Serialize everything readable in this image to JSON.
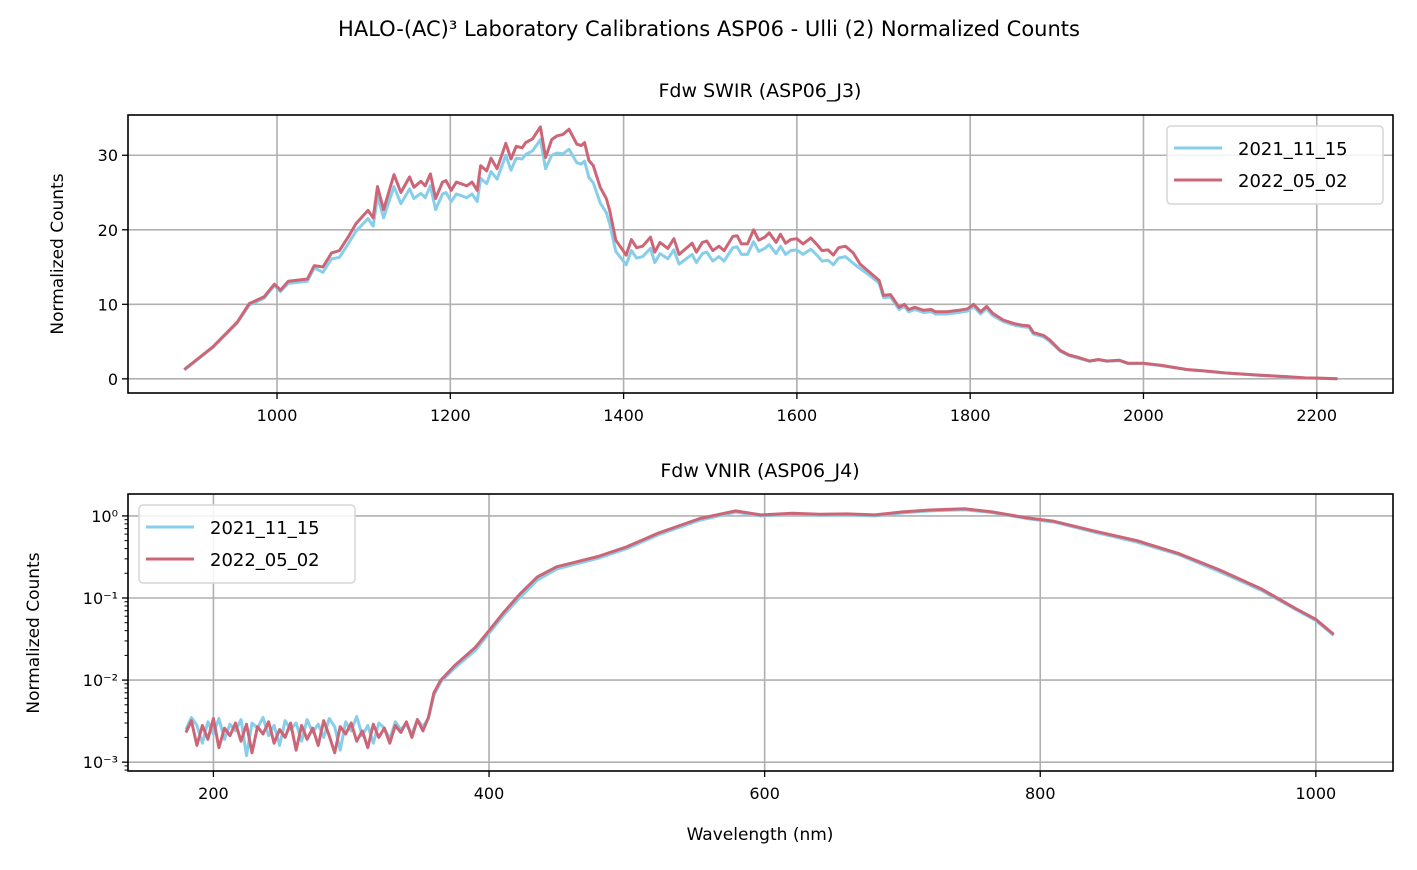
{
  "figure_title": "HALO-(AC)³ Laboratory Calibrations ASP06 - Ulli (2) Normalized Counts",
  "colors": {
    "series_2021": "#87CEEB",
    "series_2022": "#CC6677",
    "grid": "#b0b0b0"
  },
  "chart_data": [
    {
      "type": "line",
      "title": "Fdw SWIR (ASP06_J3)",
      "xlabel": "",
      "ylabel": "Normalized Counts",
      "yscale": "linear",
      "xlim": [
        828,
        2288
      ],
      "ylim": [
        -1.9,
        35.4
      ],
      "xticks": [
        1000,
        1200,
        1400,
        1600,
        1800,
        2000,
        2200
      ],
      "xtick_labels": [
        "1000",
        "1200",
        "1400",
        "1600",
        "1800",
        "2000",
        "2200"
      ],
      "yticks": [
        0,
        10,
        20,
        30
      ],
      "ytick_labels": [
        "0",
        "10",
        "20",
        "30"
      ],
      "grid": true,
      "legend": "top-right",
      "x": [
        893,
        926,
        954,
        968,
        985,
        997,
        1004,
        1013,
        1035,
        1043,
        1053,
        1063,
        1072,
        1082,
        1091,
        1105,
        1111,
        1116,
        1123,
        1135,
        1143,
        1153,
        1158,
        1166,
        1171,
        1177,
        1183,
        1191,
        1195,
        1201,
        1207,
        1219,
        1225,
        1231,
        1235,
        1242,
        1247,
        1254,
        1264,
        1270,
        1276,
        1283,
        1287,
        1295,
        1304,
        1310,
        1317,
        1323,
        1330,
        1337,
        1346,
        1351,
        1355,
        1360,
        1365,
        1373,
        1380,
        1384,
        1391,
        1403,
        1409,
        1415,
        1422,
        1431,
        1436,
        1442,
        1451,
        1458,
        1464,
        1479,
        1484,
        1491,
        1496,
        1503,
        1510,
        1516,
        1526,
        1531,
        1536,
        1543,
        1550,
        1556,
        1563,
        1568,
        1576,
        1581,
        1587,
        1593,
        1600,
        1607,
        1616,
        1624,
        1629,
        1636,
        1642,
        1648,
        1656,
        1665,
        1673,
        1685,
        1695,
        1700,
        1708,
        1718,
        1724,
        1729,
        1736,
        1746,
        1755,
        1760,
        1773,
        1787,
        1797,
        1804,
        1812,
        1819,
        1826,
        1838,
        1851,
        1860,
        1868,
        1873,
        1885,
        1892,
        1904,
        1914,
        1924,
        1938,
        1948,
        1958,
        1972,
        1982,
        2000,
        2021,
        2050,
        2070,
        2094,
        2133,
        2167,
        2186,
        2201,
        2224
      ],
      "series": [
        {
          "name": "2021_11_15",
          "color": "#87CEEB",
          "values": [
            1.2,
            4.2,
            7.5,
            9.9,
            10.8,
            12.5,
            11.7,
            12.8,
            13.1,
            14.9,
            14.3,
            16.1,
            16.3,
            18.1,
            19.8,
            21.5,
            20.5,
            24.5,
            21.6,
            25.8,
            23.5,
            25.5,
            24.2,
            24.9,
            24.3,
            25.9,
            22.7,
            24.8,
            25.0,
            23.8,
            24.8,
            24.3,
            24.8,
            23.8,
            26.9,
            26.2,
            27.8,
            26.8,
            30.0,
            28.0,
            29.6,
            29.5,
            30.1,
            30.6,
            32.1,
            28.2,
            30.0,
            30.3,
            30.2,
            30.8,
            29.0,
            28.8,
            29.2,
            27.0,
            26.3,
            23.6,
            22.3,
            20.8,
            17.1,
            15.3,
            17.2,
            16.2,
            16.4,
            17.5,
            15.6,
            16.8,
            16.1,
            17.3,
            15.4,
            16.7,
            15.6,
            16.8,
            17.0,
            15.8,
            16.4,
            15.8,
            17.6,
            17.7,
            16.7,
            16.7,
            18.4,
            17.1,
            17.5,
            18.0,
            16.8,
            17.8,
            16.7,
            17.2,
            17.3,
            16.7,
            17.4,
            16.5,
            15.8,
            15.9,
            15.3,
            16.2,
            16.4,
            15.5,
            14.8,
            13.8,
            12.8,
            10.9,
            11.0,
            9.3,
            9.7,
            9.0,
            9.3,
            8.9,
            9.0,
            8.7,
            8.7,
            8.9,
            9.1,
            9.7,
            8.7,
            9.4,
            8.5,
            7.7,
            7.2,
            7.0,
            6.9,
            6.0,
            5.6,
            5.0,
            3.7,
            3.1,
            2.8,
            2.35,
            2.55,
            2.35,
            2.45,
            2.05,
            2.05,
            1.75,
            1.22,
            1.05,
            0.78,
            0.49,
            0.26,
            0.13,
            0.1,
            0.0
          ]
        },
        {
          "name": "2022_05_02",
          "color": "#CC6677",
          "values": [
            1.25,
            4.3,
            7.6,
            10.1,
            11.0,
            12.7,
            11.9,
            13.1,
            13.4,
            15.2,
            15.0,
            16.9,
            17.2,
            19.0,
            20.8,
            22.6,
            21.6,
            25.8,
            22.7,
            27.4,
            25.0,
            27.1,
            25.7,
            26.5,
            25.9,
            27.5,
            24.2,
            26.4,
            26.6,
            25.3,
            26.4,
            25.9,
            26.4,
            25.3,
            28.6,
            27.9,
            29.6,
            28.2,
            31.6,
            29.5,
            31.2,
            31.0,
            31.7,
            32.2,
            33.8,
            29.7,
            32.1,
            32.6,
            32.8,
            33.5,
            31.5,
            31.3,
            31.7,
            29.3,
            28.6,
            25.7,
            24.2,
            22.6,
            18.6,
            16.6,
            18.7,
            17.6,
            17.8,
            19.0,
            17.0,
            18.3,
            17.5,
            18.8,
            16.7,
            18.2,
            17.0,
            18.3,
            18.5,
            17.2,
            17.8,
            17.2,
            19.1,
            19.2,
            18.1,
            18.1,
            20.0,
            18.6,
            19.0,
            19.6,
            18.3,
            19.4,
            18.2,
            18.7,
            18.8,
            18.1,
            18.9,
            17.9,
            17.2,
            17.3,
            16.6,
            17.6,
            17.8,
            16.9,
            15.4,
            14.2,
            13.2,
            11.2,
            11.3,
            9.6,
            10.0,
            9.3,
            9.6,
            9.2,
            9.3,
            9.0,
            9.0,
            9.2,
            9.4,
            10.0,
            9.0,
            9.7,
            8.8,
            7.9,
            7.4,
            7.2,
            7.1,
            6.2,
            5.8,
            5.2,
            3.8,
            3.2,
            2.9,
            2.4,
            2.6,
            2.4,
            2.5,
            2.1,
            2.1,
            1.8,
            1.25,
            1.07,
            0.8,
            0.5,
            0.27,
            0.13,
            0.1,
            0.0
          ]
        }
      ]
    },
    {
      "type": "line",
      "title": "Fdw VNIR (ASP06_J4)",
      "xlabel": "Wavelength (nm)",
      "ylabel": "Normalized Counts",
      "yscale": "log",
      "xlim": [
        138,
        1056
      ],
      "ylim": [
        0.00078,
        1.85
      ],
      "xticks": [
        200,
        400,
        600,
        800,
        1000
      ],
      "xtick_labels": [
        "200",
        "400",
        "600",
        "800",
        "1000"
      ],
      "yticks": [
        0.001,
        0.01,
        0.1,
        1
      ],
      "ytick_labels": [
        "10⁻³",
        "10⁻²",
        "10⁻¹",
        "10⁰"
      ],
      "grid": true,
      "legend": "top-left",
      "x": [
        180,
        184,
        188,
        192,
        196,
        200,
        204,
        208,
        212,
        216,
        220,
        224,
        228,
        232,
        236,
        240,
        244,
        248,
        252,
        256,
        260,
        264,
        268,
        272,
        276,
        280,
        284,
        288,
        292,
        296,
        300,
        304,
        308,
        312,
        316,
        320,
        324,
        328,
        332,
        336,
        340,
        344,
        348,
        352,
        356,
        360,
        365,
        375,
        390,
        400,
        410,
        422,
        435,
        449,
        465,
        479,
        500,
        523,
        553,
        579,
        597,
        620,
        640,
        660,
        680,
        700,
        720,
        745,
        765,
        790,
        810,
        840,
        870,
        900,
        930,
        960,
        985,
        1000,
        1013
      ],
      "series": [
        {
          "name": "2021_11_15",
          "color": "#87CEEB",
          "values": [
            0.0025,
            0.0035,
            0.0028,
            0.0017,
            0.0031,
            0.0022,
            0.0034,
            0.0019,
            0.0029,
            0.0024,
            0.0033,
            0.0012,
            0.003,
            0.0026,
            0.0035,
            0.0021,
            0.0028,
            0.0016,
            0.0032,
            0.0025,
            0.003,
            0.0018,
            0.0033,
            0.0023,
            0.0029,
            0.002,
            0.0034,
            0.0027,
            0.0014,
            0.0031,
            0.0024,
            0.0036,
            0.0021,
            0.0028,
            0.0017,
            0.003,
            0.0026,
            0.0019,
            0.0031,
            0.0025,
            0.0029,
            0.0022,
            0.0033,
            0.0027,
            0.0034,
            0.0065,
            0.0095,
            0.014,
            0.023,
            0.037,
            0.06,
            0.1,
            0.165,
            0.225,
            0.265,
            0.305,
            0.4,
            0.59,
            0.89,
            1.11,
            1.0,
            1.05,
            1.02,
            1.03,
            1.0,
            1.09,
            1.15,
            1.19,
            1.1,
            0.93,
            0.84,
            0.63,
            0.48,
            0.34,
            0.21,
            0.125,
            0.073,
            0.053,
            0.035
          ]
        },
        {
          "name": "2022_05_02",
          "color": "#CC6677",
          "values": [
            0.0023,
            0.0032,
            0.0016,
            0.0028,
            0.0019,
            0.0034,
            0.0015,
            0.0026,
            0.0021,
            0.003,
            0.0018,
            0.0029,
            0.0013,
            0.0027,
            0.0022,
            0.0031,
            0.0017,
            0.0025,
            0.002,
            0.003,
            0.0014,
            0.0028,
            0.0019,
            0.0026,
            0.0016,
            0.0032,
            0.0021,
            0.0013,
            0.0027,
            0.0022,
            0.003,
            0.0018,
            0.0024,
            0.0015,
            0.0029,
            0.002,
            0.0026,
            0.0017,
            0.0028,
            0.0023,
            0.0031,
            0.002,
            0.0033,
            0.0024,
            0.0035,
            0.007,
            0.01,
            0.015,
            0.025,
            0.04,
            0.065,
            0.11,
            0.18,
            0.24,
            0.28,
            0.32,
            0.42,
            0.62,
            0.93,
            1.15,
            1.03,
            1.08,
            1.05,
            1.06,
            1.03,
            1.12,
            1.18,
            1.22,
            1.12,
            0.95,
            0.86,
            0.65,
            0.5,
            0.35,
            0.22,
            0.13,
            0.075,
            0.055,
            0.036
          ]
        }
      ]
    }
  ]
}
